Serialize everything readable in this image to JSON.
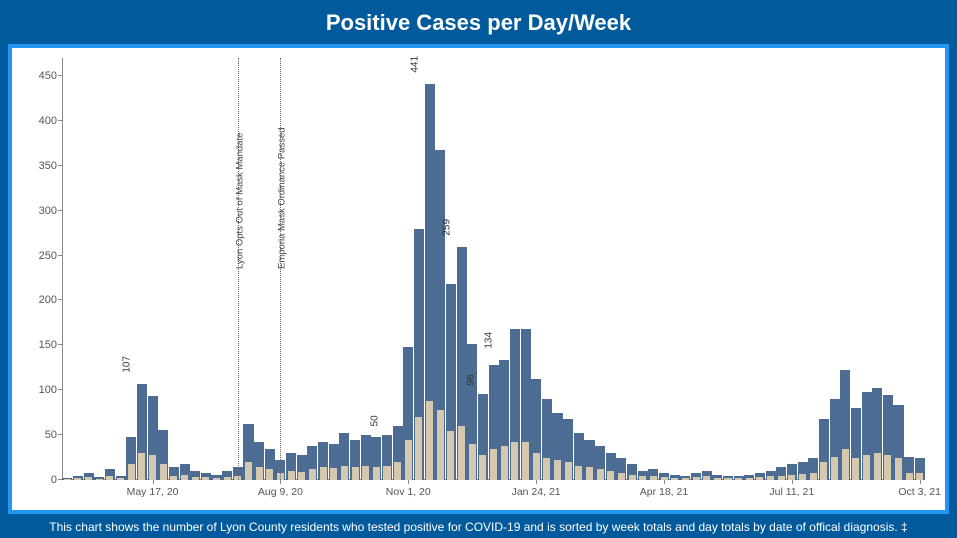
{
  "title": "Positive Cases per Day/Week",
  "footer": "This chart shows the number of Lyon County residents who tested positive for COVID-19 and is sorted by week totals and day totals by date of offical diagnosis. ‡",
  "chart": {
    "type": "bar",
    "ylim": [
      0,
      470
    ],
    "yticks": [
      0,
      50,
      100,
      150,
      200,
      250,
      300,
      350,
      400,
      450
    ],
    "xticks": [
      {
        "index": 8,
        "label": "May 17, 20"
      },
      {
        "index": 20,
        "label": "Aug 9, 20"
      },
      {
        "index": 32,
        "label": "Nov 1, 20"
      },
      {
        "index": 44,
        "label": "Jan 24, 21"
      },
      {
        "index": 56,
        "label": "Apr 18, 21"
      },
      {
        "index": 68,
        "label": "Jul 11, 21"
      },
      {
        "index": 80,
        "label": "Oct 3, 21"
      }
    ],
    "n_bars": 81,
    "week_color": "#4c6c94",
    "day_color": "#d4c8b0",
    "background_color": "#ffffff",
    "border_color": "#2196f3",
    "axis_color": "#888888",
    "tick_color": "#555555",
    "title_fontsize_pt": 22,
    "tick_fontsize_pt": 11,
    "vertical_lines": [
      {
        "index": 16,
        "label": "Lyon Opts Out of Mask Mandate"
      },
      {
        "index": 20,
        "label": "Emporia Mask Ordinance Passed"
      }
    ],
    "bar_labels": [
      {
        "index": 7,
        "value": "107"
      },
      {
        "index": 30,
        "value": "50"
      },
      {
        "index": 34,
        "value": "441"
      },
      {
        "index": 37,
        "value": "259"
      },
      {
        "index": 39,
        "value": "96"
      },
      {
        "index": 41,
        "value": "134"
      }
    ],
    "week_values": [
      2,
      4,
      8,
      3,
      12,
      5,
      48,
      107,
      94,
      56,
      15,
      18,
      10,
      8,
      6,
      10,
      14,
      62,
      42,
      35,
      22,
      30,
      28,
      38,
      42,
      40,
      52,
      45,
      50,
      48,
      50,
      60,
      148,
      280,
      441,
      368,
      218,
      259,
      152,
      96,
      128,
      134,
      168,
      168,
      112,
      90,
      75,
      68,
      52,
      45,
      38,
      30,
      25,
      18,
      10,
      12,
      8,
      6,
      5,
      8,
      10,
      6,
      5,
      4,
      6,
      8,
      10,
      14,
      18,
      20,
      24,
      68,
      90,
      122,
      80,
      98,
      102,
      95,
      84,
      26,
      24
    ],
    "day_values": [
      1,
      2,
      3,
      1,
      4,
      2,
      18,
      30,
      28,
      18,
      5,
      6,
      3,
      3,
      2,
      3,
      5,
      20,
      14,
      12,
      8,
      10,
      9,
      12,
      14,
      13,
      16,
      15,
      16,
      15,
      16,
      20,
      45,
      70,
      88,
      78,
      55,
      60,
      40,
      28,
      35,
      38,
      42,
      42,
      30,
      25,
      22,
      20,
      16,
      14,
      12,
      10,
      8,
      6,
      4,
      4,
      3,
      2,
      2,
      3,
      4,
      2,
      2,
      2,
      2,
      3,
      4,
      5,
      6,
      7,
      8,
      20,
      26,
      34,
      24,
      28,
      30,
      28,
      25,
      8,
      8
    ]
  }
}
